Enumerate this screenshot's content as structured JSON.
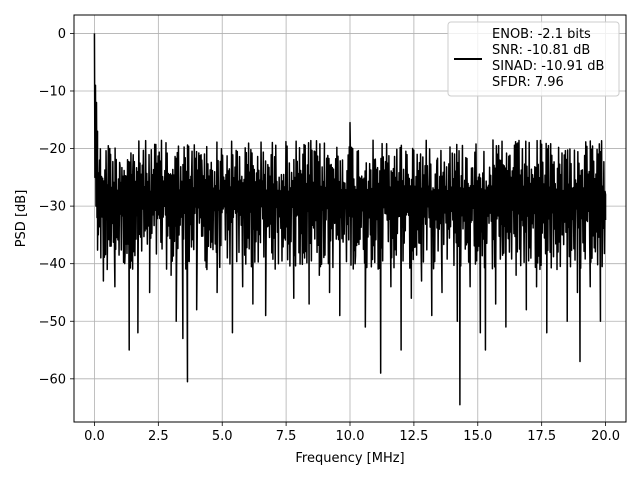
{
  "chart_data": {
    "type": "line",
    "title": "",
    "xlabel": "Frequency [MHz]",
    "ylabel": "PSD [dB]",
    "xlim": [
      -0.8,
      20.8
    ],
    "ylim": [
      -67.5,
      3.2
    ],
    "xticks": [
      0.0,
      2.5,
      5.0,
      7.5,
      10.0,
      12.5,
      15.0,
      17.5,
      20.0
    ],
    "xtick_labels": [
      "0.0",
      "2.5",
      "5.0",
      "7.5",
      "10.0",
      "12.5",
      "15.0",
      "17.5",
      "20.0"
    ],
    "yticks": [
      0,
      -10,
      -20,
      -30,
      -40,
      -50,
      -60
    ],
    "ytick_labels": [
      "0",
      "−10",
      "−20",
      "−30",
      "−40",
      "−50",
      "−60"
    ],
    "grid": true,
    "legend_position": "top-right",
    "legend_lines": [
      "ENOB: -2.1 bits",
      "SNR: -10.81 dB",
      "SINAD: -10.91 dB",
      "SFDR: 7.96"
    ],
    "series": [
      {
        "color": "#000000",
        "x": [
          0.0,
          0.02,
          0.04,
          0.06,
          0.08,
          0.1,
          0.12,
          0.15,
          0.2,
          0.25,
          0.3,
          0.35,
          0.4,
          0.5,
          0.6,
          0.7,
          0.8,
          1.0,
          1.2,
          1.36,
          1.5,
          1.7,
          2.0,
          2.16,
          2.4,
          2.6,
          2.8,
          3.0,
          3.2,
          3.46,
          3.64,
          3.8,
          4.0,
          4.2,
          4.4,
          4.6,
          4.8,
          5.0,
          5.2,
          5.4,
          5.6,
          5.8,
          6.0,
          6.2,
          6.5,
          6.7,
          7.0,
          7.2,
          7.5,
          7.8,
          8.0,
          8.2,
          8.4,
          8.6,
          8.8,
          9.0,
          9.2,
          9.4,
          9.6,
          9.8,
          10.0,
          10.2,
          10.4,
          10.6,
          10.8,
          11.0,
          11.2,
          11.4,
          11.6,
          11.8,
          12.0,
          12.2,
          12.4,
          12.6,
          12.8,
          13.0,
          13.2,
          13.4,
          13.6,
          13.8,
          14.0,
          14.2,
          14.3,
          14.5,
          14.7,
          14.9,
          15.1,
          15.3,
          15.5,
          15.7,
          15.9,
          16.1,
          16.3,
          16.5,
          16.7,
          16.9,
          17.1,
          17.3,
          17.5,
          17.7,
          17.9,
          18.1,
          18.3,
          18.5,
          18.7,
          18.9,
          19.0,
          19.2,
          19.4,
          19.6,
          19.8,
          20.0
        ],
        "y": [
          0.0,
          -25.0,
          -9.0,
          -30.0,
          -12.0,
          -32.0,
          -17.0,
          -35.0,
          -22.0,
          -39.0,
          -28.0,
          -43.0,
          -30.0,
          -41.0,
          -20.0,
          -33.0,
          -44.0,
          -23.0,
          -38.0,
          -55.0,
          -24.0,
          -52.0,
          -21.0,
          -45.0,
          -27.0,
          -36.0,
          -19.0,
          -42.0,
          -50.0,
          -53.0,
          -60.5,
          -25.0,
          -48.0,
          -22.0,
          -41.0,
          -30.0,
          -45.0,
          -26.0,
          -39.0,
          -52.0,
          -28.0,
          -44.0,
          -23.0,
          -47.0,
          -31.0,
          -49.0,
          -27.0,
          -40.0,
          -22.0,
          -46.0,
          -34.0,
          -25.0,
          -47.0,
          -29.0,
          -42.0,
          -23.0,
          -45.0,
          -33.0,
          -49.0,
          -26.0,
          -15.5,
          -40.0,
          -28.0,
          -51.0,
          -35.0,
          -24.0,
          -59.0,
          -29.0,
          -44.0,
          -25.0,
          -55.0,
          -31.0,
          -46.0,
          -27.0,
          -43.0,
          -32.0,
          -49.0,
          -22.0,
          -45.0,
          -36.0,
          -28.0,
          -50.0,
          -64.5,
          -26.0,
          -44.0,
          -33.0,
          -52.0,
          -55.0,
          -29.0,
          -47.0,
          -35.0,
          -51.0,
          -25.0,
          -42.0,
          -30.0,
          -48.0,
          -27.0,
          -44.0,
          -33.0,
          -52.0,
          -29.0,
          -41.0,
          -35.0,
          -50.0,
          -28.0,
          -45.0,
          -57.0,
          -31.0,
          -44.0,
          -26.0,
          -50.0,
          -28.0
        ]
      }
    ],
    "noise": {
      "description_free_params": true,
      "x_start": 0.1,
      "x_end": 20.0,
      "points": 900,
      "center": -29.0,
      "band_high": -18.5,
      "band_low": -41.0
    }
  }
}
